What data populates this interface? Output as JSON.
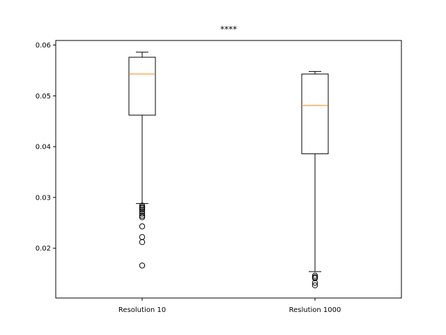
{
  "chart_data": {
    "type": "box",
    "title": "****",
    "xlabel": "",
    "ylabel": "",
    "categories": [
      "Resolution 10",
      "Reslution 1000"
    ],
    "ylim": [
      0.0102,
      0.0609
    ],
    "yticks": [
      0.02,
      0.03,
      0.04,
      0.05,
      0.06
    ],
    "ytick_labels": [
      "0.02",
      "0.03",
      "0.04",
      "0.05",
      "0.06"
    ],
    "grid": false,
    "boxes": [
      {
        "category": "Resolution 10",
        "whisker_low": 0.0288,
        "q1": 0.0462,
        "median": 0.0543,
        "q3": 0.0576,
        "whisker_high": 0.0586,
        "outliers": [
          0.0284,
          0.0281,
          0.0279,
          0.0276,
          0.0272,
          0.0268,
          0.0264,
          0.0261,
          0.0243,
          0.0222,
          0.0212,
          0.0166
        ]
      },
      {
        "category": "Reslution 1000",
        "whisker_low": 0.0154,
        "q1": 0.0386,
        "median": 0.0481,
        "q3": 0.0543,
        "whisker_high": 0.0548,
        "outliers": [
          0.0146,
          0.0143,
          0.0141,
          0.0132,
          0.0127
        ]
      }
    ],
    "colors": {
      "box": "#000000",
      "median": "#ff7f0e",
      "outlier": "#000000"
    }
  }
}
